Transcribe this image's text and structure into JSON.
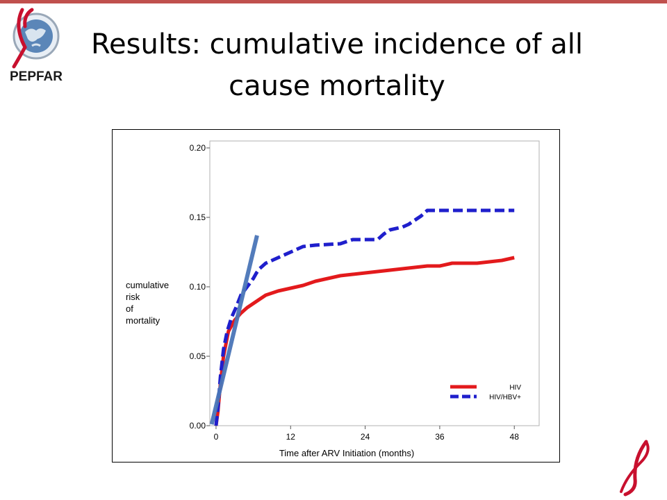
{
  "slide": {
    "title_line1": "Results: cumulative incidence of all",
    "title_line2": "cause  mortality",
    "logo_text": "PEPFAR",
    "accent_color": "#c0504d"
  },
  "chart_data": {
    "type": "line",
    "xlabel": "Time after ARV Initiation (months)",
    "ylabel_lines": [
      "cumulative",
      "risk",
      "of",
      "mortality"
    ],
    "xlim": [
      -1,
      52
    ],
    "ylim": [
      0,
      0.205
    ],
    "xticks": [
      0,
      12,
      24,
      36,
      48
    ],
    "yticks": [
      0.0,
      0.05,
      0.1,
      0.15,
      0.2
    ],
    "ytick_labels": [
      "0.00",
      "0.05",
      "0.10",
      "0.15",
      "0.20"
    ],
    "grid": false,
    "legend_position": "bottom-right",
    "series": [
      {
        "name": "HIV",
        "color": "#e31a1c",
        "style": "solid",
        "points": [
          [
            0,
            0
          ],
          [
            0.3,
            0.01
          ],
          [
            0.7,
            0.03
          ],
          [
            1.2,
            0.05
          ],
          [
            2,
            0.068
          ],
          [
            3,
            0.076
          ],
          [
            4,
            0.081
          ],
          [
            5,
            0.085
          ],
          [
            6,
            0.088
          ],
          [
            7,
            0.091
          ],
          [
            8,
            0.094
          ],
          [
            10,
            0.097
          ],
          [
            12,
            0.099
          ],
          [
            14,
            0.101
          ],
          [
            16,
            0.104
          ],
          [
            18,
            0.106
          ],
          [
            20,
            0.108
          ],
          [
            22,
            0.109
          ],
          [
            24,
            0.11
          ],
          [
            26,
            0.111
          ],
          [
            28,
            0.112
          ],
          [
            30,
            0.113
          ],
          [
            32,
            0.114
          ],
          [
            34,
            0.115
          ],
          [
            36,
            0.115
          ],
          [
            38,
            0.117
          ],
          [
            40,
            0.117
          ],
          [
            42,
            0.117
          ],
          [
            44,
            0.118
          ],
          [
            46,
            0.119
          ],
          [
            47,
            0.12
          ],
          [
            48,
            0.121
          ]
        ]
      },
      {
        "name": "HIV/HBV+",
        "color": "#1f1fcc",
        "style": "dashed",
        "points": [
          [
            0,
            0
          ],
          [
            0.3,
            0.012
          ],
          [
            0.7,
            0.035
          ],
          [
            1.2,
            0.055
          ],
          [
            1.8,
            0.068
          ],
          [
            2.5,
            0.078
          ],
          [
            3.2,
            0.085
          ],
          [
            4,
            0.094
          ],
          [
            5,
            0.1
          ],
          [
            6,
            0.106
          ],
          [
            6.5,
            0.11
          ],
          [
            7,
            0.113
          ],
          [
            8,
            0.117
          ],
          [
            10,
            0.121
          ],
          [
            12,
            0.125
          ],
          [
            14,
            0.129
          ],
          [
            16,
            0.13
          ],
          [
            20,
            0.131
          ],
          [
            22,
            0.134
          ],
          [
            26,
            0.134
          ],
          [
            27,
            0.138
          ],
          [
            28,
            0.141
          ],
          [
            30,
            0.143
          ],
          [
            31,
            0.145
          ],
          [
            32,
            0.148
          ],
          [
            33,
            0.151
          ],
          [
            34,
            0.155
          ],
          [
            40,
            0.155
          ],
          [
            48,
            0.155
          ]
        ]
      }
    ],
    "overlay_line": {
      "color": "#4a76b8",
      "from": [
        -0.7,
        0.001
      ],
      "to": [
        6.6,
        0.137
      ]
    }
  }
}
